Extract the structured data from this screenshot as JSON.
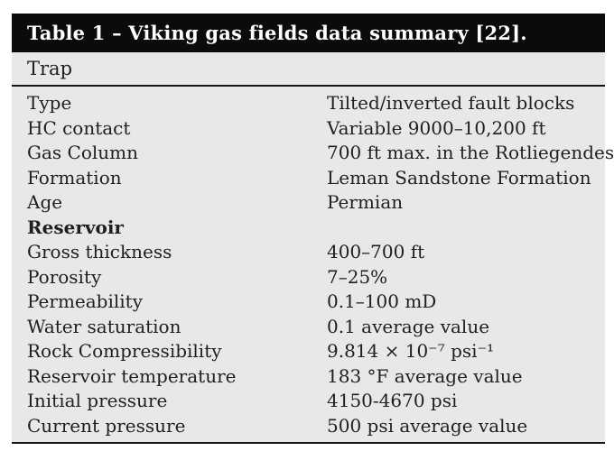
{
  "table": {
    "title": "Table 1 – Viking gas fields data summary [22].",
    "section_header": "Trap",
    "rows": [
      {
        "label": "Type",
        "value": "Tilted/inverted fault blocks",
        "bold": false
      },
      {
        "label": "HC contact",
        "value": "Variable 9000–10,200 ft",
        "bold": false
      },
      {
        "label": "Gas Column",
        "value": "700 ft max. in the Rotliegendes",
        "bold": false
      },
      {
        "label": "Formation",
        "value": "Leman Sandstone Formation",
        "bold": false
      },
      {
        "label": "Age",
        "value": "Permian",
        "bold": false
      },
      {
        "label": "Reservoir",
        "value": "",
        "bold": true
      },
      {
        "label": "Gross thickness",
        "value": "400–700 ft",
        "bold": false
      },
      {
        "label": "Porosity",
        "value": "7–25%",
        "bold": false
      },
      {
        "label": "Permeability",
        "value": "0.1–100 mD",
        "bold": false
      },
      {
        "label": "Water saturation",
        "value": "0.1 average value",
        "bold": false
      },
      {
        "label": "Rock Compressibility",
        "value": "9.814 × 10⁻⁷ psi⁻¹",
        "bold": false
      },
      {
        "label": "Reservoir temperature",
        "value": "183 °F average value",
        "bold": false
      },
      {
        "label": "Initial pressure",
        "value": "4150-4670 psi",
        "bold": false
      },
      {
        "label": "Current pressure",
        "value": "500 psi average value",
        "bold": false
      }
    ]
  }
}
